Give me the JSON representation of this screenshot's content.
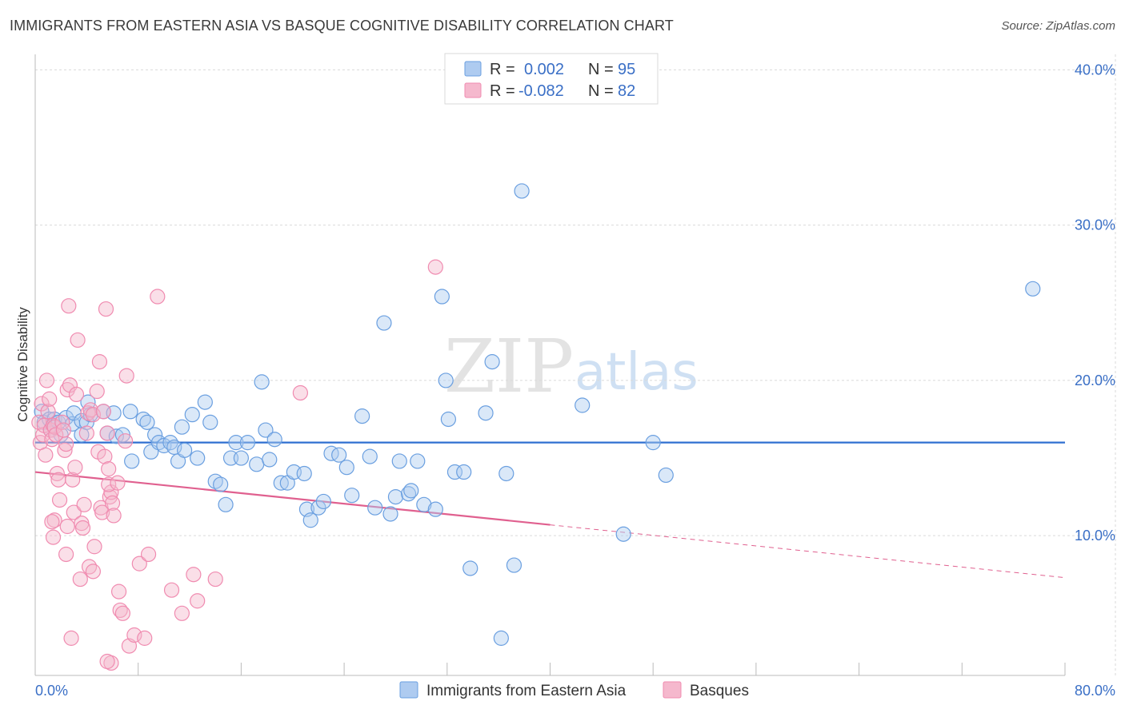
{
  "title": "IMMIGRANTS FROM EASTERN ASIA VS BASQUE COGNITIVE DISABILITY CORRELATION CHART",
  "source": "Source: ZipAtlas.com",
  "watermark": {
    "zip": "ZIP",
    "atlas": "atlas"
  },
  "legend": {
    "rows": [
      {
        "r_label": "R =",
        "r_value": "0.002",
        "n_label": "N =",
        "n_value": "95",
        "color": "#aecbf0"
      },
      {
        "r_label": "R =",
        "r_value": "-0.082",
        "n_label": "N =",
        "n_value": "82",
        "color": "#f5b8cd"
      }
    ]
  },
  "bottom_legend": [
    {
      "label": "Immigrants from Eastern Asia",
      "color": "#aecbf0"
    },
    {
      "label": "Basques",
      "color": "#f5b8cd"
    }
  ],
  "colors": {
    "blue": "#6a9fe0",
    "blue_line": "#2f6fd0",
    "pink": "#f08bb0",
    "pink_line": "#e0608f",
    "tick_label": "#3a6fc6"
  },
  "chart_data": {
    "type": "scatter",
    "title": "IMMIGRANTS FROM EASTERN ASIA VS BASQUE COGNITIVE DISABILITY CORRELATION CHART",
    "xlabel": "",
    "ylabel": "Cognitive Disability",
    "xlim": [
      0,
      80
    ],
    "ylim": [
      1,
      41
    ],
    "x_tick_labels": [
      "0.0%",
      "80.0%"
    ],
    "y_ticks": [
      10,
      20,
      30,
      40
    ],
    "y_tick_labels": [
      "10.0%",
      "20.0%",
      "30.0%",
      "40.0%"
    ],
    "grid": "horizontal dashed",
    "legend_position": "top-center",
    "series": [
      {
        "name": "Immigrants from Eastern Asia",
        "trend": {
          "x0": 0,
          "y0": 16.0,
          "x1": 80,
          "y1": 16.0
        },
        "points": [
          [
            0.5,
            18.0
          ],
          [
            0.7,
            17.3
          ],
          [
            1.1,
            17.5
          ],
          [
            1.2,
            16.8
          ],
          [
            1.5,
            17.5
          ],
          [
            1.8,
            17.3
          ],
          [
            2.0,
            16.5
          ],
          [
            2.4,
            17.6
          ],
          [
            2.9,
            17.2
          ],
          [
            3.0,
            17.9
          ],
          [
            3.6,
            17.4
          ],
          [
            3.6,
            16.5
          ],
          [
            4.0,
            17.3
          ],
          [
            4.1,
            18.6
          ],
          [
            4.3,
            17.8
          ],
          [
            5.3,
            18.0
          ],
          [
            5.6,
            16.6
          ],
          [
            6.1,
            17.9
          ],
          [
            6.3,
            16.4
          ],
          [
            6.8,
            16.5
          ],
          [
            7.4,
            18.0
          ],
          [
            7.5,
            14.8
          ],
          [
            8.4,
            17.5
          ],
          [
            8.7,
            17.3
          ],
          [
            9.0,
            15.4
          ],
          [
            9.3,
            16.5
          ],
          [
            9.6,
            16.0
          ],
          [
            10.0,
            15.8
          ],
          [
            10.5,
            16.0
          ],
          [
            10.8,
            15.7
          ],
          [
            11.1,
            14.8
          ],
          [
            11.4,
            17.0
          ],
          [
            11.6,
            15.5
          ],
          [
            12.2,
            17.8
          ],
          [
            12.6,
            15.0
          ],
          [
            13.2,
            18.6
          ],
          [
            13.6,
            17.3
          ],
          [
            14.0,
            13.5
          ],
          [
            14.4,
            13.3
          ],
          [
            14.8,
            12.0
          ],
          [
            15.2,
            15.0
          ],
          [
            15.6,
            16.0
          ],
          [
            16.0,
            15.0
          ],
          [
            16.5,
            16.0
          ],
          [
            17.2,
            14.6
          ],
          [
            17.6,
            19.9
          ],
          [
            17.9,
            16.8
          ],
          [
            18.2,
            14.9
          ],
          [
            18.6,
            16.2
          ],
          [
            19.1,
            13.4
          ],
          [
            19.6,
            13.4
          ],
          [
            20.1,
            14.1
          ],
          [
            20.9,
            14.0
          ],
          [
            21.1,
            11.7
          ],
          [
            21.4,
            11.0
          ],
          [
            22.0,
            11.8
          ],
          [
            22.4,
            12.2
          ],
          [
            23.0,
            15.3
          ],
          [
            23.6,
            15.2
          ],
          [
            24.2,
            14.4
          ],
          [
            24.6,
            12.6
          ],
          [
            25.4,
            17.7
          ],
          [
            26.0,
            15.1
          ],
          [
            26.4,
            11.8
          ],
          [
            27.1,
            23.7
          ],
          [
            27.6,
            11.4
          ],
          [
            28.0,
            12.5
          ],
          [
            28.3,
            14.8
          ],
          [
            29.0,
            12.7
          ],
          [
            29.2,
            12.9
          ],
          [
            29.7,
            14.8
          ],
          [
            30.2,
            12.0
          ],
          [
            31.1,
            11.7
          ],
          [
            31.6,
            25.4
          ],
          [
            31.9,
            20.0
          ],
          [
            32.1,
            17.5
          ],
          [
            32.6,
            14.1
          ],
          [
            33.3,
            14.1
          ],
          [
            33.8,
            7.9
          ],
          [
            35.0,
            17.9
          ],
          [
            35.5,
            21.2
          ],
          [
            36.2,
            3.4
          ],
          [
            36.6,
            14.0
          ],
          [
            37.2,
            8.1
          ],
          [
            37.8,
            32.2
          ],
          [
            42.5,
            18.4
          ],
          [
            45.7,
            10.1
          ],
          [
            48.0,
            16.0
          ],
          [
            49.0,
            13.9
          ],
          [
            77.5,
            25.9
          ]
        ]
      },
      {
        "name": "Basques",
        "trend": {
          "x0": 0,
          "y0": 14.1,
          "x1": 40,
          "y1": 10.7,
          "dashed_to": {
            "x": 80,
            "y": 7.3
          }
        },
        "points": [
          [
            0.3,
            17.3
          ],
          [
            0.4,
            16.0
          ],
          [
            0.5,
            18.5
          ],
          [
            0.6,
            16.5
          ],
          [
            0.7,
            17.1
          ],
          [
            0.8,
            15.2
          ],
          [
            0.9,
            20.0
          ],
          [
            1.0,
            18.0
          ],
          [
            1.1,
            18.8
          ],
          [
            1.2,
            16.8
          ],
          [
            1.3,
            16.2
          ],
          [
            1.4,
            17.1
          ],
          [
            1.5,
            17.0
          ],
          [
            1.6,
            16.5
          ],
          [
            1.7,
            14.0
          ],
          [
            1.8,
            13.6
          ],
          [
            1.9,
            12.3
          ],
          [
            1.5,
            11.0
          ],
          [
            1.3,
            10.9
          ],
          [
            1.4,
            9.9
          ],
          [
            2.1,
            17.3
          ],
          [
            2.2,
            16.8
          ],
          [
            2.3,
            15.5
          ],
          [
            2.4,
            15.9
          ],
          [
            2.5,
            19.4
          ],
          [
            2.5,
            10.6
          ],
          [
            2.4,
            8.8
          ],
          [
            2.6,
            24.8
          ],
          [
            2.7,
            19.7
          ],
          [
            2.8,
            3.4
          ],
          [
            2.9,
            13.6
          ],
          [
            3.0,
            11.5
          ],
          [
            3.1,
            14.4
          ],
          [
            3.2,
            19.1
          ],
          [
            3.3,
            22.6
          ],
          [
            3.5,
            7.2
          ],
          [
            3.6,
            10.8
          ],
          [
            3.7,
            10.5
          ],
          [
            3.8,
            12.0
          ],
          [
            4.0,
            16.6
          ],
          [
            4.1,
            17.9
          ],
          [
            4.2,
            8.0
          ],
          [
            4.3,
            18.1
          ],
          [
            4.5,
            17.8
          ],
          [
            4.5,
            7.7
          ],
          [
            4.6,
            9.3
          ],
          [
            4.8,
            19.3
          ],
          [
            4.9,
            15.4
          ],
          [
            5.0,
            21.2
          ],
          [
            5.1,
            11.8
          ],
          [
            5.2,
            11.5
          ],
          [
            5.3,
            18.0
          ],
          [
            5.4,
            15.1
          ],
          [
            5.5,
            24.6
          ],
          [
            5.6,
            16.6
          ],
          [
            5.7,
            14.3
          ],
          [
            5.8,
            12.5
          ],
          [
            5.9,
            12.8
          ],
          [
            6.0,
            12.1
          ],
          [
            5.7,
            13.3
          ],
          [
            6.1,
            11.3
          ],
          [
            5.9,
            1.8
          ],
          [
            5.6,
            1.9
          ],
          [
            6.4,
            13.4
          ],
          [
            6.5,
            6.4
          ],
          [
            6.6,
            5.2
          ],
          [
            6.8,
            5.0
          ],
          [
            7.0,
            16.1
          ],
          [
            7.1,
            20.3
          ],
          [
            7.3,
            2.9
          ],
          [
            7.7,
            3.6
          ],
          [
            8.1,
            8.2
          ],
          [
            8.5,
            3.4
          ],
          [
            8.8,
            8.8
          ],
          [
            9.5,
            25.4
          ],
          [
            10.6,
            6.5
          ],
          [
            11.4,
            5.0
          ],
          [
            12.3,
            7.5
          ],
          [
            12.6,
            5.8
          ],
          [
            14.0,
            7.2
          ],
          [
            20.6,
            19.2
          ],
          [
            31.1,
            27.3
          ]
        ]
      }
    ]
  }
}
